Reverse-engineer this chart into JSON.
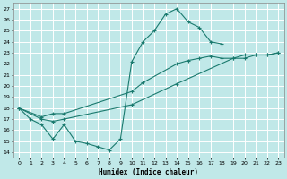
{
  "xlabel": "Humidex (Indice chaleur)",
  "bg_color": "#c0e8e8",
  "line_color": "#1a7a6e",
  "grid_color": "#ffffff",
  "xlim": [
    -0.5,
    23.5
  ],
  "ylim": [
    13.5,
    27.5
  ],
  "yticks": [
    14,
    15,
    16,
    17,
    18,
    19,
    20,
    21,
    22,
    23,
    24,
    25,
    26,
    27
  ],
  "xticks": [
    0,
    1,
    2,
    3,
    4,
    5,
    6,
    7,
    8,
    9,
    10,
    11,
    12,
    13,
    14,
    15,
    16,
    17,
    18,
    19,
    20,
    21,
    22,
    23
  ],
  "curve1_x": [
    0,
    1,
    2,
    3,
    4,
    5,
    6,
    7,
    8,
    9,
    10,
    11,
    12,
    13,
    14,
    15,
    16,
    17,
    18
  ],
  "curve1_y": [
    18,
    17,
    16.5,
    15.2,
    16.5,
    15.0,
    14.8,
    14.5,
    14.2,
    15.2,
    22.2,
    24.0,
    25.0,
    26.5,
    27.0,
    25.8,
    25.3,
    24.0,
    23.8
  ],
  "curve2_x": [
    0,
    2,
    3,
    4,
    10,
    11,
    14,
    15,
    16,
    17,
    18,
    19,
    20,
    21,
    22,
    23
  ],
  "curve2_y": [
    18,
    17.2,
    17.5,
    17.5,
    19.5,
    20.3,
    22.0,
    22.3,
    22.5,
    22.7,
    22.5,
    22.5,
    22.8,
    22.8,
    22.8,
    23.0
  ],
  "curve3_x": [
    0,
    2,
    3,
    4,
    10,
    14,
    19,
    20,
    21,
    22,
    23
  ],
  "curve3_y": [
    18,
    17.0,
    16.8,
    17.0,
    18.3,
    20.2,
    22.5,
    22.5,
    22.8,
    22.8,
    23.0
  ]
}
